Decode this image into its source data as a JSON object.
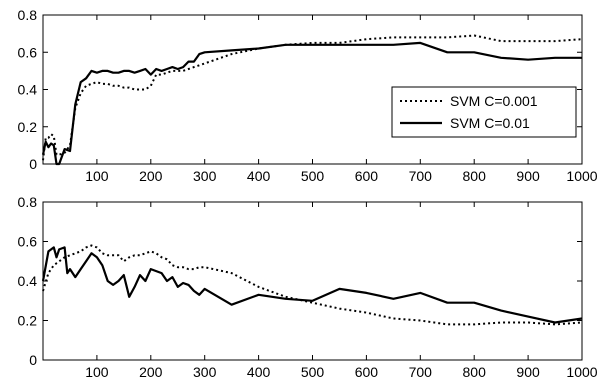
{
  "chart_data": [
    {
      "type": "line",
      "title": "",
      "xlabel": "",
      "ylabel": "",
      "xlim": [
        0,
        1000
      ],
      "ylim": [
        0,
        0.8
      ],
      "xticks": [
        "100",
        "200",
        "300",
        "400",
        "500",
        "600",
        "700",
        "800",
        "900",
        "1000"
      ],
      "yticks": [
        "0",
        "0.2",
        "0.4",
        "0.6",
        "0.8"
      ],
      "grid": false,
      "legend": "center-right",
      "series": [
        {
          "name": "SVM C=0.001",
          "style": "dotted",
          "color": "#000000",
          "x": [
            0,
            5,
            10,
            15,
            20,
            25,
            30,
            40,
            50,
            60,
            70,
            80,
            90,
            100,
            110,
            120,
            130,
            140,
            150,
            160,
            170,
            180,
            190,
            200,
            210,
            220,
            230,
            240,
            250,
            260,
            270,
            280,
            290,
            300,
            350,
            400,
            450,
            500,
            550,
            600,
            650,
            700,
            750,
            800,
            850,
            900,
            950,
            1000
          ],
          "y": [
            0.02,
            0.14,
            0.14,
            0.16,
            0.15,
            0.05,
            0.05,
            0.06,
            0.1,
            0.3,
            0.38,
            0.42,
            0.43,
            0.44,
            0.43,
            0.43,
            0.42,
            0.42,
            0.41,
            0.41,
            0.4,
            0.4,
            0.4,
            0.42,
            0.48,
            0.48,
            0.49,
            0.5,
            0.5,
            0.5,
            0.51,
            0.52,
            0.53,
            0.54,
            0.59,
            0.62,
            0.64,
            0.65,
            0.65,
            0.67,
            0.68,
            0.68,
            0.68,
            0.69,
            0.66,
            0.66,
            0.66,
            0.67
          ]
        },
        {
          "name": "SVM C=0.01",
          "style": "solid",
          "color": "#000000",
          "x": [
            0,
            5,
            10,
            15,
            20,
            25,
            30,
            40,
            50,
            60,
            70,
            80,
            90,
            100,
            110,
            120,
            130,
            140,
            150,
            160,
            170,
            180,
            190,
            200,
            210,
            220,
            230,
            240,
            250,
            260,
            270,
            280,
            290,
            300,
            350,
            400,
            450,
            500,
            550,
            600,
            650,
            700,
            750,
            800,
            850,
            900,
            950,
            1000
          ],
          "y": [
            0.05,
            0.12,
            0.09,
            0.11,
            0.1,
            0.0,
            0.0,
            0.08,
            0.07,
            0.32,
            0.44,
            0.46,
            0.5,
            0.49,
            0.5,
            0.5,
            0.49,
            0.49,
            0.5,
            0.5,
            0.49,
            0.5,
            0.51,
            0.48,
            0.51,
            0.5,
            0.51,
            0.52,
            0.51,
            0.52,
            0.55,
            0.55,
            0.59,
            0.6,
            0.61,
            0.62,
            0.64,
            0.64,
            0.64,
            0.64,
            0.64,
            0.65,
            0.6,
            0.6,
            0.57,
            0.56,
            0.57,
            0.57
          ]
        }
      ]
    },
    {
      "type": "line",
      "title": "",
      "xlabel": "",
      "ylabel": "",
      "xlim": [
        0,
        1000
      ],
      "ylim": [
        0,
        0.8
      ],
      "xticks": [
        "100",
        "200",
        "300",
        "400",
        "500",
        "600",
        "700",
        "800",
        "900",
        "1000"
      ],
      "yticks": [
        "0",
        "0.2",
        "0.4",
        "0.6",
        "0.8"
      ],
      "grid": false,
      "series": [
        {
          "style": "dotted",
          "color": "#000000",
          "x": [
            0,
            10,
            20,
            30,
            40,
            50,
            60,
            70,
            80,
            90,
            100,
            110,
            120,
            130,
            140,
            150,
            160,
            170,
            180,
            190,
            200,
            210,
            220,
            230,
            240,
            250,
            260,
            270,
            280,
            290,
            300,
            350,
            400,
            450,
            500,
            550,
            600,
            650,
            700,
            750,
            800,
            850,
            900,
            950,
            1000
          ],
          "y": [
            0.35,
            0.44,
            0.48,
            0.5,
            0.52,
            0.53,
            0.54,
            0.55,
            0.57,
            0.58,
            0.57,
            0.54,
            0.53,
            0.53,
            0.53,
            0.5,
            0.52,
            0.53,
            0.53,
            0.54,
            0.55,
            0.54,
            0.52,
            0.51,
            0.48,
            0.47,
            0.47,
            0.46,
            0.46,
            0.47,
            0.47,
            0.44,
            0.37,
            0.32,
            0.29,
            0.26,
            0.24,
            0.21,
            0.2,
            0.18,
            0.18,
            0.19,
            0.19,
            0.18,
            0.19
          ]
        },
        {
          "style": "solid",
          "color": "#000000",
          "x": [
            0,
            10,
            20,
            25,
            30,
            40,
            45,
            50,
            60,
            70,
            80,
            90,
            100,
            110,
            120,
            130,
            140,
            150,
            160,
            170,
            180,
            190,
            200,
            210,
            220,
            230,
            240,
            250,
            260,
            270,
            280,
            290,
            300,
            350,
            400,
            450,
            500,
            550,
            600,
            650,
            700,
            750,
            800,
            850,
            900,
            950,
            1000
          ],
          "y": [
            0.4,
            0.55,
            0.57,
            0.52,
            0.56,
            0.57,
            0.44,
            0.46,
            0.42,
            0.46,
            0.5,
            0.54,
            0.52,
            0.48,
            0.4,
            0.38,
            0.4,
            0.43,
            0.32,
            0.37,
            0.43,
            0.4,
            0.46,
            0.45,
            0.44,
            0.4,
            0.42,
            0.37,
            0.39,
            0.38,
            0.35,
            0.33,
            0.36,
            0.28,
            0.33,
            0.31,
            0.3,
            0.36,
            0.34,
            0.31,
            0.34,
            0.29,
            0.29,
            0.25,
            0.22,
            0.19,
            0.21
          ]
        }
      ]
    }
  ]
}
